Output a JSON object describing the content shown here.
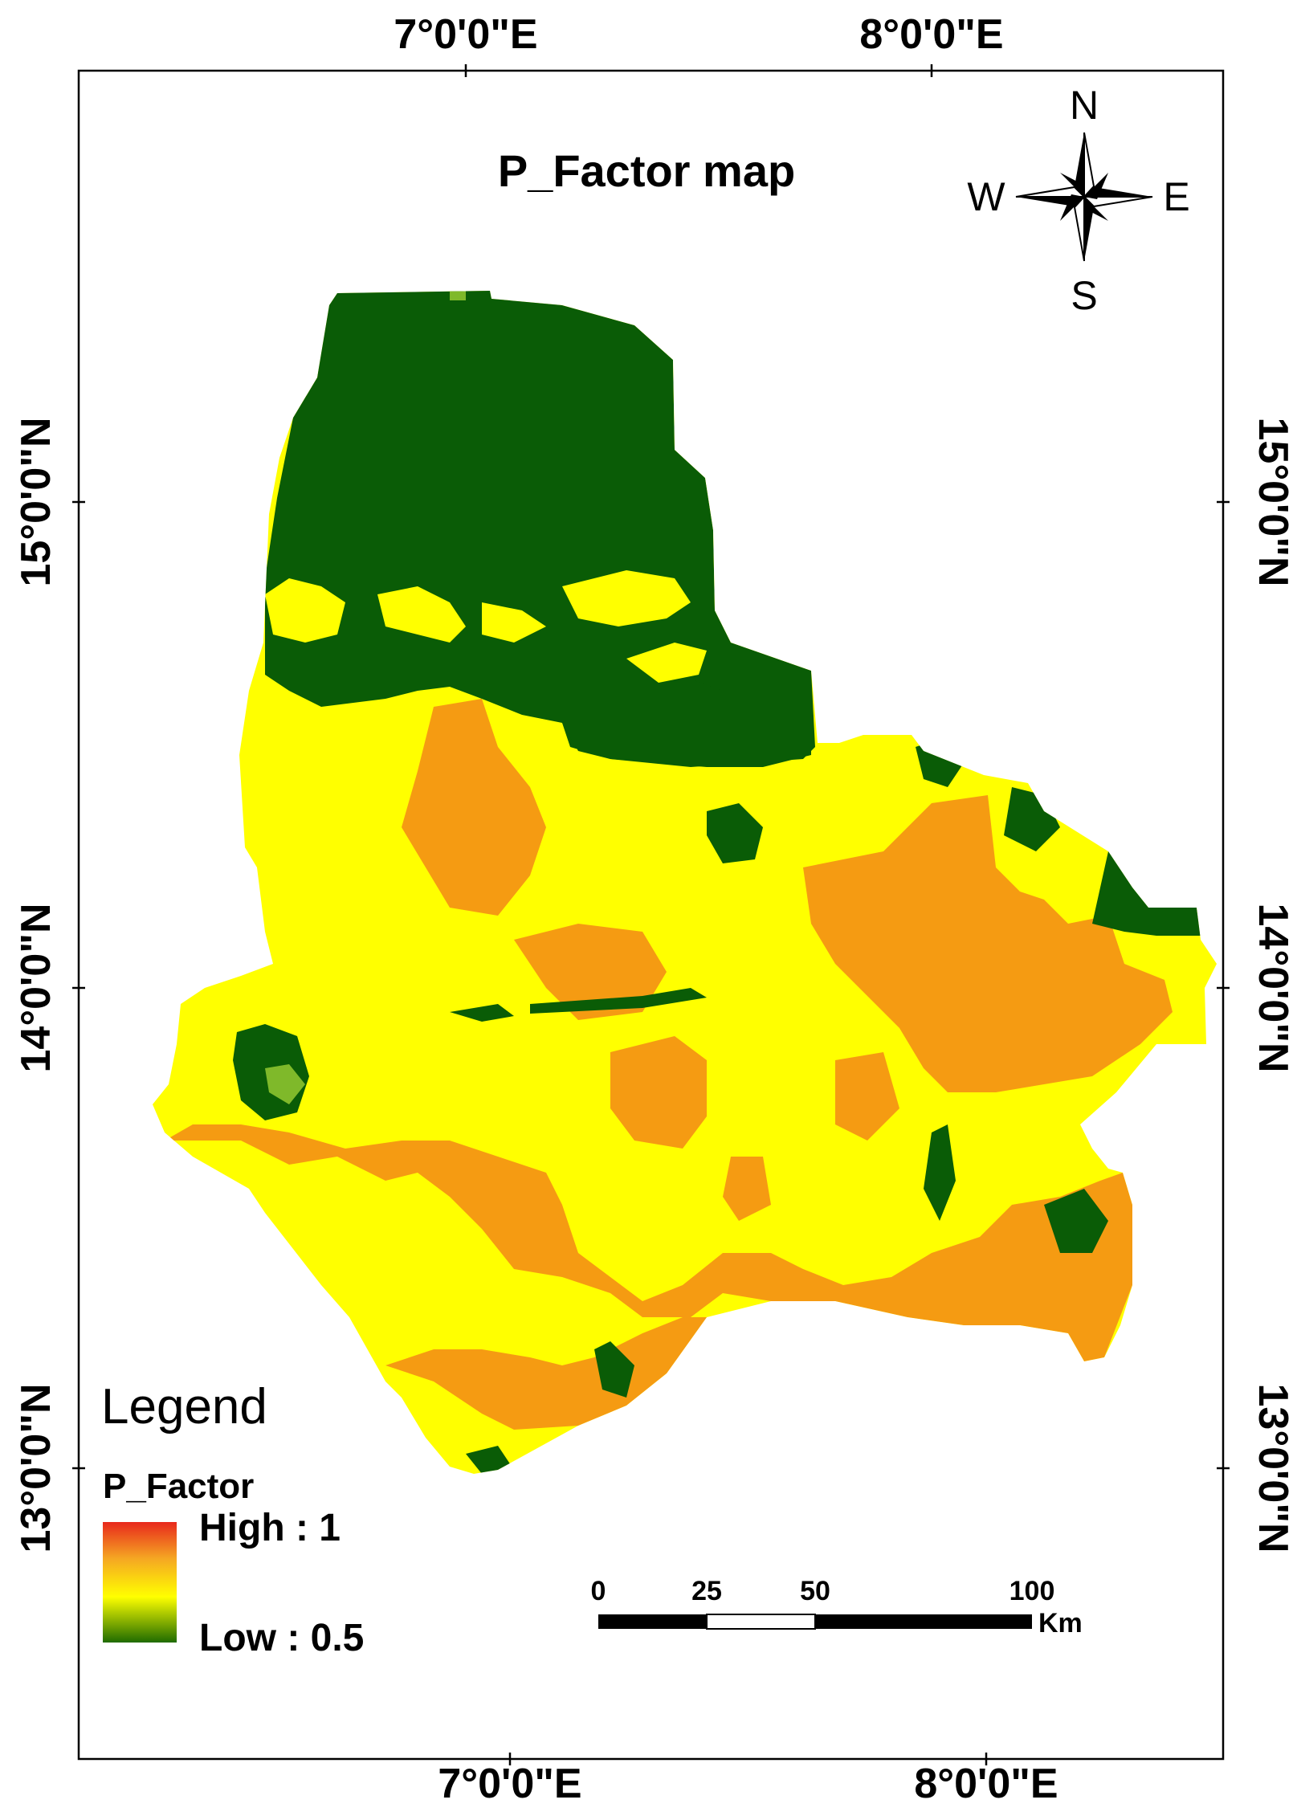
{
  "map": {
    "title": "P_Factor map",
    "top_ticks": [
      "7°0'0\"E",
      "8°0'0\"E"
    ],
    "bottom_ticks": [
      "7°0'0\"E",
      "8°0'0\"E"
    ],
    "left_ticks": [
      "15°0'0\"N",
      "14°0'0\"N",
      "13°0'0\"N"
    ],
    "right_ticks": [
      "15°0'0\"N",
      "14°0'0\"N",
      "13°0'0\"N"
    ]
  },
  "compass": {
    "north": "N",
    "south": "S",
    "east": "E",
    "west": "W"
  },
  "legend": {
    "title": "Legend",
    "layer": "P_Factor",
    "high_label": "High : 1",
    "low_label": "Low : 0.5",
    "ramp_colors": [
      "#e8281c",
      "#f5a623",
      "#ffff00",
      "#1f6b00"
    ]
  },
  "scale_bar": {
    "ticks": [
      "0",
      "25",
      "50",
      "100"
    ],
    "unit": "Km"
  },
  "colors": {
    "dark_green": "#0a5c06",
    "light_green": "#7fb92a",
    "yellow": "#ffff00",
    "orange": "#f59b12"
  }
}
